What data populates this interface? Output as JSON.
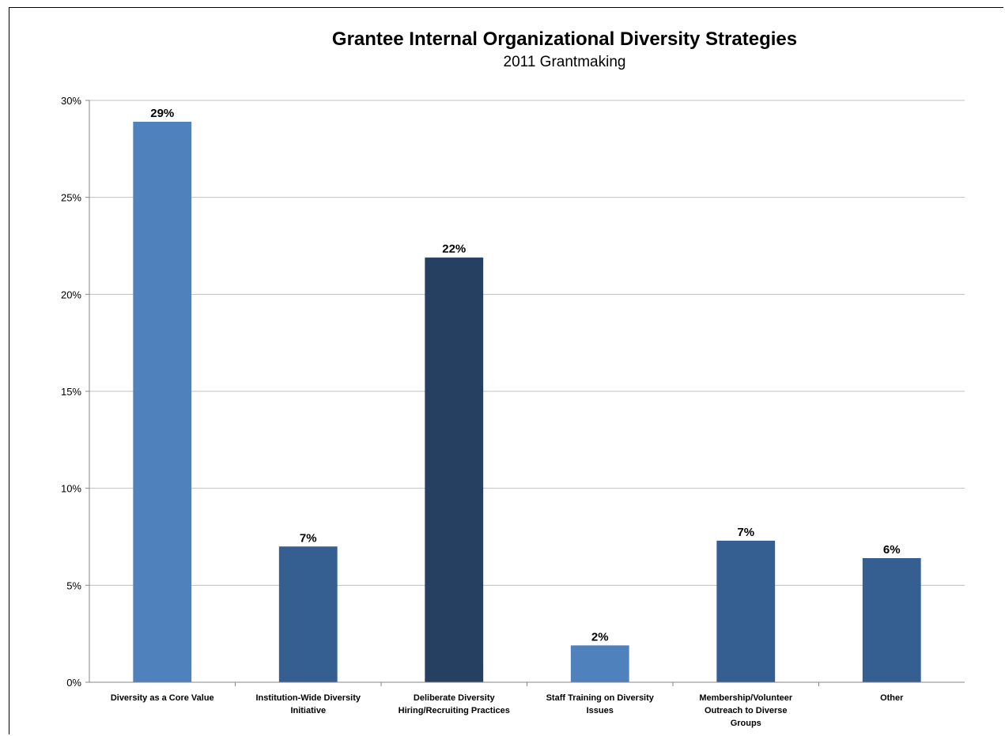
{
  "chart_data": {
    "type": "bar",
    "title": "Grantee Internal Organizational Diversity Strategies",
    "subtitle": "2011 Grantmaking",
    "xlabel": "",
    "ylabel": "",
    "ylim": [
      0,
      30
    ],
    "ytick_step": 5,
    "yticks": [
      "0%",
      "5%",
      "10%",
      "15%",
      "20%",
      "25%",
      "30%"
    ],
    "grid": true,
    "legend": "none",
    "categories": [
      [
        "Diversity as a Core Value"
      ],
      [
        "Institution-Wide Diversity",
        "Initiative"
      ],
      [
        "Deliberate Diversity",
        "Hiring/Recruiting Practices"
      ],
      [
        "Staff Training on Diversity",
        "Issues"
      ],
      [
        "Membership/Volunteer",
        "Outreach to Diverse",
        "Groups"
      ],
      [
        "Other"
      ]
    ],
    "values": [
      28.9,
      7.0,
      21.9,
      1.9,
      7.3,
      6.4
    ],
    "data_labels": [
      "29%",
      "7%",
      "22%",
      "2%",
      "7%",
      "6%"
    ],
    "colors": [
      "#4f81bd",
      "#365f91",
      "#254061",
      "#4f81bd",
      "#365f91",
      "#365f91"
    ]
  }
}
